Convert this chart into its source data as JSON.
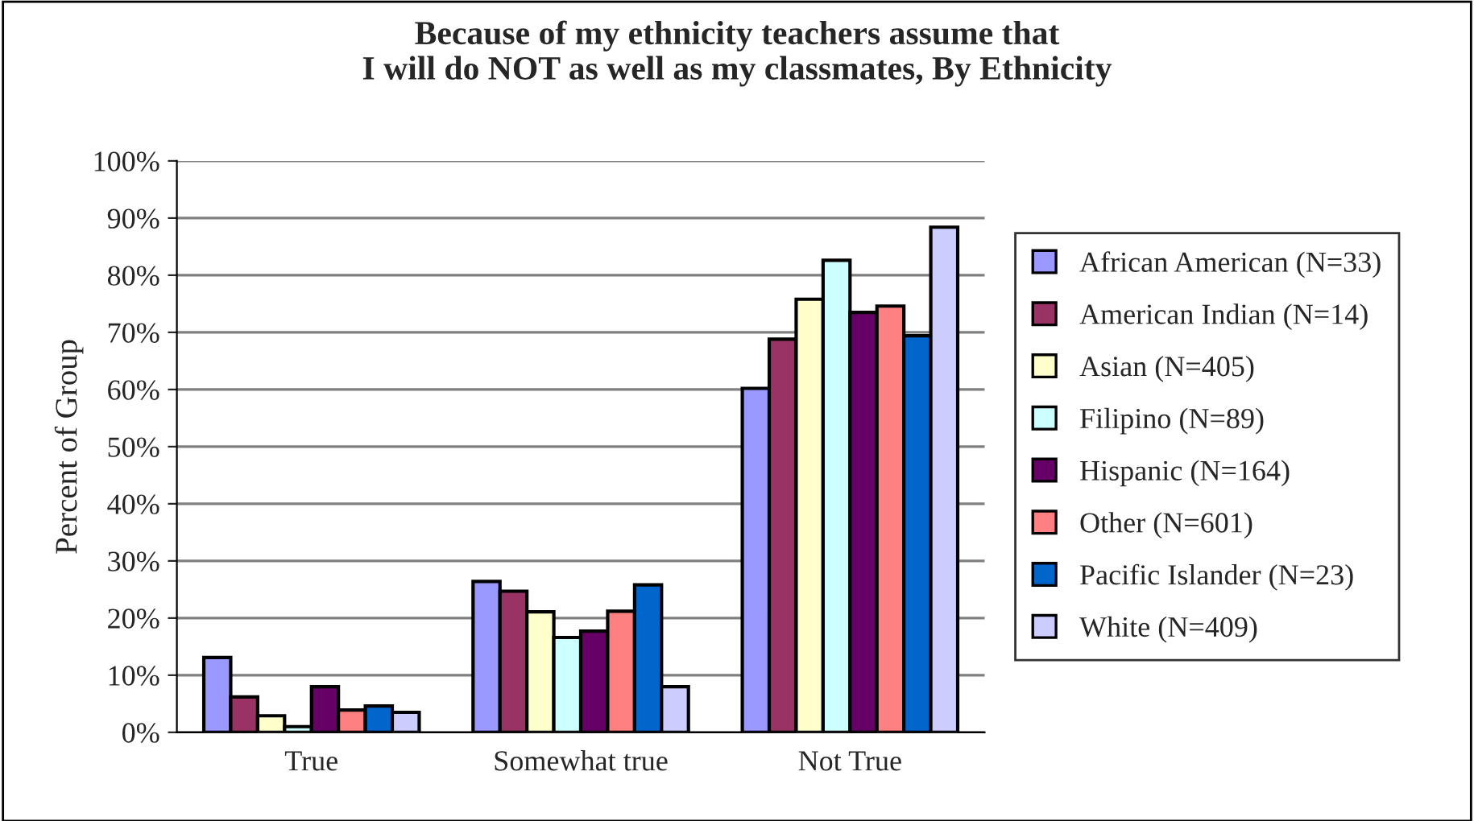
{
  "chart_data": {
    "type": "bar",
    "title": "Because of my ethnicity teachers assume that\nI will do NOT as well as my classmates, By Ethnicity",
    "ylabel": "Percent of Group",
    "categories": [
      "True",
      "Somewhat true",
      "Not True"
    ],
    "series": [
      {
        "name": "African American (N=33)",
        "color": "#9999ff",
        "values": [
          13.1,
          26.4,
          60.2
        ]
      },
      {
        "name": "American Indian (N=14)",
        "color": "#993366",
        "values": [
          6.2,
          24.7,
          68.8
        ]
      },
      {
        "name": "Asian (N=405)",
        "color": "#ffffcc",
        "values": [
          2.9,
          21.1,
          75.8
        ]
      },
      {
        "name": "Filipino (N=89)",
        "color": "#ccffff",
        "values": [
          1.0,
          16.6,
          82.6
        ]
      },
      {
        "name": "Hispanic (N=164)",
        "color": "#660066",
        "values": [
          8.0,
          17.7,
          73.5
        ]
      },
      {
        "name": "Other (N=601)",
        "color": "#ff8080",
        "values": [
          3.9,
          21.2,
          74.6
        ]
      },
      {
        "name": "Pacific Islander (N=23)",
        "color": "#0066cc",
        "values": [
          4.6,
          25.8,
          69.4
        ]
      },
      {
        "name": "White (N=409)",
        "color": "#ccccff",
        "values": [
          3.5,
          8.0,
          88.4
        ]
      }
    ],
    "ylim": [
      0,
      100
    ],
    "yticks": [
      {
        "value": 0,
        "label": "0%"
      },
      {
        "value": 10,
        "label": "10%"
      },
      {
        "value": 20,
        "label": "20%"
      },
      {
        "value": 30,
        "label": "30%"
      },
      {
        "value": 40,
        "label": "40%"
      },
      {
        "value": 50,
        "label": "50%"
      },
      {
        "value": 60,
        "label": "60%"
      },
      {
        "value": 70,
        "label": "70%"
      },
      {
        "value": 80,
        "label": "80%"
      },
      {
        "value": 90,
        "label": "90%"
      },
      {
        "value": 100,
        "label": "100%"
      }
    ],
    "grid": "y",
    "legend": "right"
  }
}
